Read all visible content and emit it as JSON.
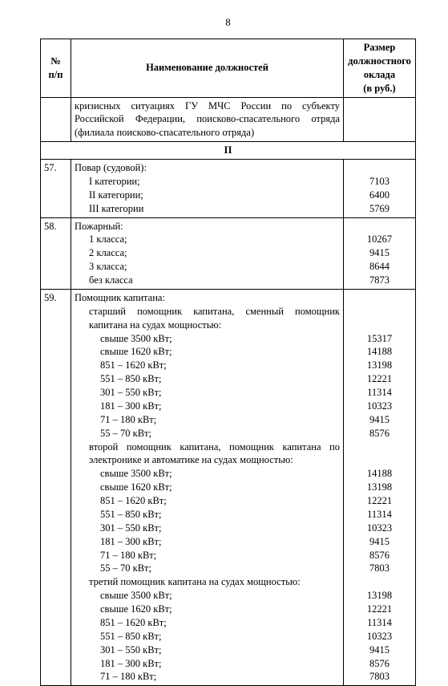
{
  "page_number": "8",
  "header": {
    "col_num": "№\nп/п",
    "col_name": "Наименование должностей",
    "col_val": "Размер должностного оклада\n(в руб.)"
  },
  "continuation_text": "кризисных ситуациях ГУ МЧС России по субъекту Российской Федерации, поисково-спасательного отряда (филиала поисково-спасательного отряда)",
  "section_letter": "П",
  "rows": [
    {
      "num": "57.",
      "title": "Повар (судовой):",
      "items": [
        {
          "label": "I категории;",
          "value": "7103"
        },
        {
          "label": "II категории;",
          "value": "6400"
        },
        {
          "label": "III категории",
          "value": "5769"
        }
      ]
    },
    {
      "num": "58.",
      "title": "Пожарный:",
      "items": [
        {
          "label": "1 класса;",
          "value": "10267"
        },
        {
          "label": "2 класса;",
          "value": "9415"
        },
        {
          "label": "3 класса;",
          "value": "8644"
        },
        {
          "label": "без класса",
          "value": "7873"
        }
      ]
    },
    {
      "num": "59.",
      "title": "Помощник капитана:",
      "groups": [
        {
          "subtitle": "старший помощник капитана, сменный помощник капитана на судах мощностью:",
          "items": [
            {
              "label": "свыше 3500 кВт;",
              "value": "15317"
            },
            {
              "label": "свыше 1620 кВт;",
              "value": "14188"
            },
            {
              "label": "851 – 1620 кВт;",
              "value": "13198"
            },
            {
              "label": "551 – 850 кВт;",
              "value": "12221"
            },
            {
              "label": "301 – 550 кВт;",
              "value": "11314"
            },
            {
              "label": "181 – 300 кВт;",
              "value": "10323"
            },
            {
              "label": "71 – 180 кВт;",
              "value": "9415"
            },
            {
              "label": "55 – 70 кВт;",
              "value": "8576"
            }
          ]
        },
        {
          "subtitle": "второй помощник капитана, помощник капитана по электронике и автоматике на судах мощностью:",
          "items": [
            {
              "label": "свыше 3500 кВт;",
              "value": "14188"
            },
            {
              "label": "свыше 1620 кВт;",
              "value": "13198"
            },
            {
              "label": "851 – 1620 кВт;",
              "value": "12221"
            },
            {
              "label": "551 – 850 кВт;",
              "value": "11314"
            },
            {
              "label": "301 – 550 кВт;",
              "value": "10323"
            },
            {
              "label": "181 – 300 кВт;",
              "value": "9415"
            },
            {
              "label": "71 – 180 кВт;",
              "value": "8576"
            },
            {
              "label": "55 – 70 кВт;",
              "value": "7803"
            }
          ]
        },
        {
          "subtitle": "третий помощник капитана на судах мощностью:",
          "items": [
            {
              "label": "свыше 3500 кВт;",
              "value": "13198"
            },
            {
              "label": "свыше 1620 кВт;",
              "value": "12221"
            },
            {
              "label": "851 – 1620 кВт;",
              "value": "11314"
            },
            {
              "label": "551 – 850 кВт;",
              "value": "10323"
            },
            {
              "label": "301 – 550 кВт;",
              "value": "9415"
            },
            {
              "label": "181 – 300 кВт;",
              "value": "8576"
            },
            {
              "label": "71 – 180 кВт;",
              "value": "7803"
            }
          ]
        }
      ]
    }
  ]
}
